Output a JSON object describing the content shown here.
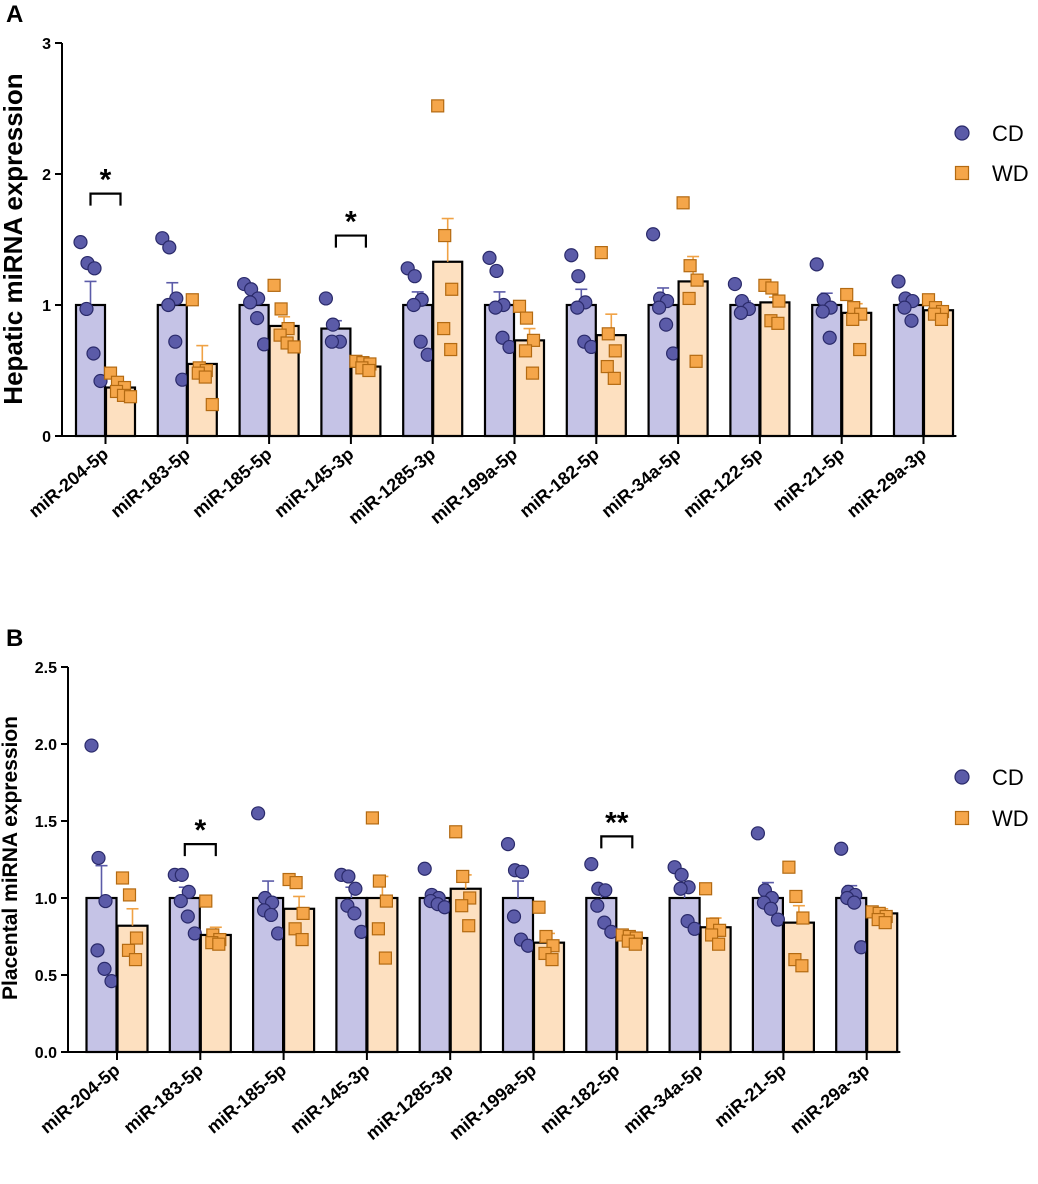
{
  "colors": {
    "cd_fill": "#c5c3e6",
    "cd_point": "#5b5ba8",
    "cd_err": "#5b5ba8",
    "wd_fill": "#fde0c0",
    "wd_point": "#f5a64a",
    "wd_err": "#f0a245",
    "bar_edge": "#000000"
  },
  "chart_data": [
    {
      "type": "bar",
      "panel_label": "A",
      "ylabel": "Hepatic miRNA expression",
      "ylim": [
        0,
        3
      ],
      "yticks": [
        "0",
        "1",
        "2",
        "3"
      ],
      "categories": [
        "miR-204-5p",
        "miR-183-5p",
        "miR-185-5p",
        "miR-145-3p",
        "miR-1285-3p",
        "miR-199a-5p",
        "miR-182-5p",
        "miR-34a-5p",
        "miR-122-5p",
        "miR-21-5p",
        "miR-29a-3p"
      ],
      "legend": [
        "CD",
        "WD"
      ],
      "series": [
        {
          "name": "CD",
          "values": [
            1.0,
            1.0,
            1.0,
            0.82,
            1.0,
            1.0,
            1.0,
            1.0,
            1.0,
            1.0,
            1.0
          ],
          "sem": [
            0.18,
            0.17,
            0.06,
            0.06,
            0.1,
            0.1,
            0.12,
            0.13,
            0.03,
            0.09,
            0.05
          ],
          "points": [
            [
              1.48,
              1.32,
              1.28,
              0.97,
              0.63,
              0.42
            ],
            [
              1.51,
              1.44,
              1.05,
              1.0,
              0.72,
              0.43
            ],
            [
              1.16,
              1.12,
              1.05,
              1.02,
              0.9,
              0.7
            ],
            [
              1.05,
              0.85,
              0.72,
              0.72
            ],
            [
              1.28,
              1.22,
              1.04,
              1.0,
              0.72,
              0.62
            ],
            [
              1.36,
              1.26,
              1.0,
              0.98,
              0.75,
              0.68
            ],
            [
              1.38,
              1.22,
              1.02,
              0.98,
              0.72,
              0.68
            ],
            [
              1.54,
              1.05,
              1.03,
              0.98,
              0.85,
              0.63
            ],
            [
              1.16,
              1.03,
              0.97,
              0.94
            ],
            [
              1.31,
              1.04,
              0.98,
              0.95,
              0.75
            ],
            [
              1.18,
              1.05,
              1.03,
              0.98,
              0.88
            ]
          ]
        },
        {
          "name": "WD",
          "values": [
            0.37,
            0.55,
            0.84,
            0.53,
            1.33,
            0.73,
            0.77,
            1.18,
            1.02,
            0.94,
            0.96
          ],
          "sem": [
            0.04,
            0.14,
            0.07,
            0.03,
            0.33,
            0.09,
            0.16,
            0.19,
            0.04,
            0.07,
            0.03
          ],
          "points": [
            [
              0.48,
              0.41,
              0.37,
              0.34,
              0.31,
              0.3
            ],
            [
              1.04,
              0.52,
              0.5,
              0.48,
              0.45,
              0.24
            ],
            [
              1.15,
              0.97,
              0.82,
              0.77,
              0.71,
              0.68
            ],
            [
              0.57,
              0.56,
              0.55,
              0.52,
              0.5
            ],
            [
              2.52,
              1.53,
              1.12,
              0.82,
              0.66
            ],
            [
              0.99,
              0.9,
              0.73,
              0.65,
              0.48
            ],
            [
              1.4,
              0.78,
              0.65,
              0.53,
              0.44
            ],
            [
              1.78,
              1.3,
              1.19,
              1.05,
              0.57
            ],
            [
              1.15,
              1.13,
              1.03,
              0.88,
              0.86
            ],
            [
              1.08,
              0.98,
              0.93,
              0.89,
              0.66
            ],
            [
              1.04,
              0.98,
              0.95,
              0.93,
              0.89
            ]
          ]
        }
      ],
      "annotations": [
        {
          "category": "miR-204-5p",
          "label": "*",
          "y": 1.85
        },
        {
          "category": "miR-145-3p",
          "label": "*",
          "y": 1.53
        }
      ]
    },
    {
      "type": "bar",
      "panel_label": "B",
      "ylabel": "Placental miRNA expression",
      "ylim": [
        0,
        2.5
      ],
      "yticks": [
        "0.0",
        "0.5",
        "1.0",
        "1.5",
        "2.0",
        "2.5"
      ],
      "categories": [
        "miR-204-5p",
        "miR-183-5p",
        "miR-185-5p",
        "miR-145-3p",
        "miR-1285-3p",
        "miR-199a-5p",
        "miR-182-5p",
        "miR-34a-5p",
        "miR-21-5p",
        "miR-29a-3p"
      ],
      "legend": [
        "CD",
        "WD"
      ],
      "series": [
        {
          "name": "CD",
          "values": [
            1.0,
            1.0,
            1.0,
            1.0,
            1.0,
            1.0,
            1.0,
            1.0,
            1.0,
            1.0
          ],
          "sem": [
            0.21,
            0.07,
            0.11,
            0.07,
            0.03,
            0.11,
            0.07,
            0.08,
            0.1,
            0.08
          ],
          "points": [
            [
              1.99,
              1.26,
              0.98,
              0.66,
              0.54,
              0.46
            ],
            [
              1.15,
              1.15,
              1.04,
              0.98,
              0.88,
              0.77
            ],
            [
              1.55,
              1.0,
              0.97,
              0.92,
              0.89,
              0.77
            ],
            [
              1.15,
              1.14,
              1.06,
              0.95,
              0.9,
              0.78
            ],
            [
              1.19,
              1.02,
              1.0,
              0.98,
              0.96,
              0.94
            ],
            [
              1.35,
              1.18,
              1.17,
              0.88,
              0.73,
              0.69
            ],
            [
              1.22,
              1.06,
              1.05,
              0.95,
              0.84,
              0.78
            ],
            [
              1.2,
              1.15,
              1.07,
              1.06,
              0.85,
              0.8
            ],
            [
              1.42,
              1.05,
              1.0,
              0.97,
              0.93,
              0.86
            ],
            [
              1.32,
              1.04,
              1.02,
              1.0,
              0.97,
              0.68
            ]
          ]
        },
        {
          "name": "WD",
          "values": [
            0.82,
            0.76,
            0.93,
            1.0,
            1.06,
            0.71,
            0.74,
            0.81,
            0.84,
            0.9
          ],
          "sem": [
            0.11,
            0.05,
            0.08,
            0.14,
            0.09,
            0.06,
            0.01,
            0.06,
            0.11,
            0.03
          ],
          "points": [
            [
              1.13,
              1.02,
              0.74,
              0.66,
              0.6
            ],
            [
              0.98,
              0.76,
              0.73,
              0.71,
              0.7
            ],
            [
              1.12,
              1.1,
              0.9,
              0.8,
              0.73
            ],
            [
              1.52,
              1.11,
              0.98,
              0.8,
              0.61
            ],
            [
              1.43,
              1.14,
              1.0,
              0.95,
              0.82
            ],
            [
              0.94,
              0.75,
              0.69,
              0.64,
              0.6
            ],
            [
              0.76,
              0.75,
              0.74,
              0.72,
              0.7
            ],
            [
              1.06,
              0.83,
              0.79,
              0.76,
              0.7
            ],
            [
              1.2,
              1.01,
              0.87,
              0.6,
              0.56
            ],
            [
              0.91,
              0.9,
              0.88,
              0.86,
              0.84
            ]
          ]
        }
      ],
      "annotations": [
        {
          "category": "miR-183-5p",
          "label": "*",
          "y": 1.35
        },
        {
          "category": "miR-182-5p",
          "label": "**",
          "y": 1.4
        }
      ]
    }
  ]
}
